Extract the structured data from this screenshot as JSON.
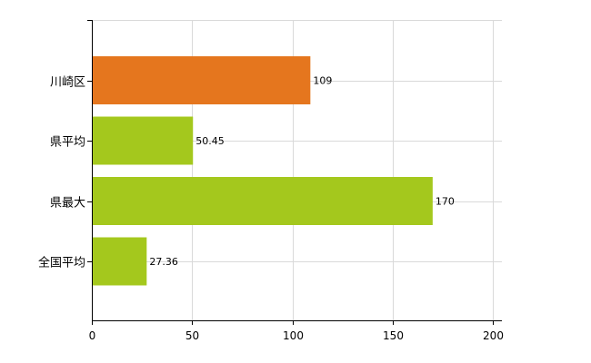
{
  "chart_data": {
    "type": "bar",
    "orientation": "horizontal",
    "categories": [
      "川崎区",
      "県平均",
      "県最大",
      "全国平均"
    ],
    "values": [
      109,
      50.45,
      170,
      27.36
    ],
    "data_labels": [
      "109",
      "50.45",
      "170",
      "27.36"
    ],
    "colors": [
      "#e5761e",
      "#a4c81d",
      "#a4c81d",
      "#a4c81d"
    ],
    "xlim": [
      0,
      200
    ],
    "x_ticks": [
      0,
      50,
      100,
      150,
      200
    ],
    "grid": true,
    "title": "",
    "xlabel": "",
    "ylabel": ""
  }
}
